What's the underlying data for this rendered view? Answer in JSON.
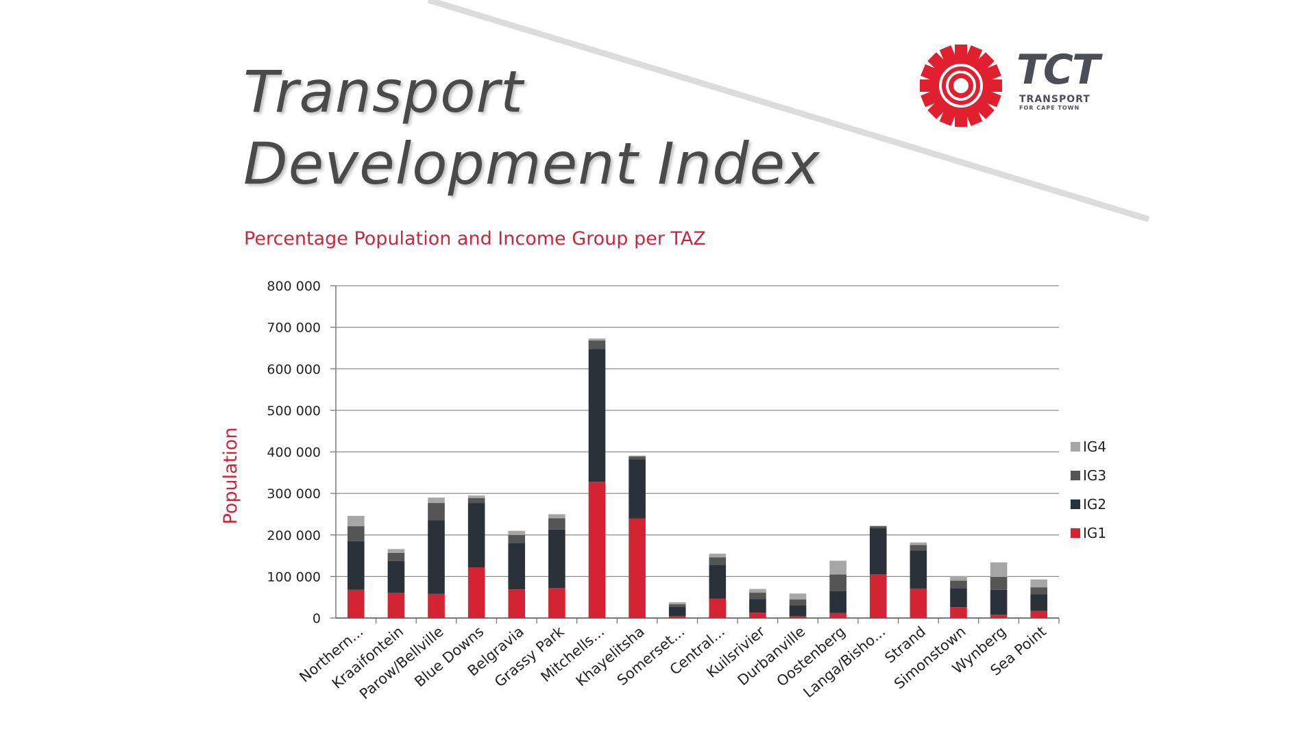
{
  "slide": {
    "title_line1": "Transport",
    "title_line2": "Development Index",
    "subtitle": "Percentage Population and Income Group per TAZ"
  },
  "logo": {
    "name": "TCT",
    "tagline": "TRANSPORT",
    "tagline2": "FOR CAPE TOWN",
    "color": "#e0202e"
  },
  "chart_data": {
    "type": "bar",
    "stacked": true,
    "ylabel": "Population",
    "xlabel": "",
    "ylim": [
      0,
      800000
    ],
    "yticks": [
      0,
      100000,
      200000,
      300000,
      400000,
      500000,
      600000,
      700000,
      800000
    ],
    "ytick_labels": [
      "0",
      "100 000",
      "200 000",
      "300 000",
      "400 000",
      "500 000",
      "600 000",
      "700 000",
      "800 000"
    ],
    "grid": true,
    "legend_position": "right",
    "categories": [
      "Northern...",
      "Kraaifontein",
      "Parow/Bellville",
      "Blue Downs",
      "Belgravia",
      "Grassy Park",
      "Mitchells...",
      "Khayelitsha",
      "Somerset...",
      "Central...",
      "Kuilsrivier",
      "Durbanville",
      "Oostenberg",
      "Langa/Bisho...",
      "Strand",
      "Simonstown",
      "Wynberg",
      "Sea Point"
    ],
    "series": [
      {
        "name": "IG1",
        "color": "#d42433",
        "values": [
          68000,
          61000,
          58000,
          122000,
          69000,
          72000,
          328000,
          240000,
          5000,
          47000,
          13000,
          5000,
          12000,
          105000,
          71000,
          26000,
          8000,
          17000
        ]
      },
      {
        "name": "IG2",
        "color": "#2b3139",
        "values": [
          117000,
          76000,
          177000,
          155000,
          112000,
          141000,
          320000,
          142000,
          22000,
          81000,
          33000,
          26000,
          53000,
          111000,
          92000,
          46000,
          60000,
          40000
        ]
      },
      {
        "name": "IG3",
        "color": "#555555",
        "values": [
          36000,
          20000,
          42000,
          12000,
          19000,
          27000,
          20000,
          7000,
          6000,
          18000,
          15000,
          14000,
          40000,
          5000,
          13000,
          18000,
          31000,
          17000
        ]
      },
      {
        "name": "IG4",
        "color": "#a6a6a6",
        "values": [
          25000,
          9000,
          13000,
          6000,
          10000,
          10000,
          5000,
          2000,
          5000,
          9000,
          9000,
          14000,
          33000,
          1000,
          6000,
          11000,
          35000,
          19000
        ]
      }
    ]
  }
}
